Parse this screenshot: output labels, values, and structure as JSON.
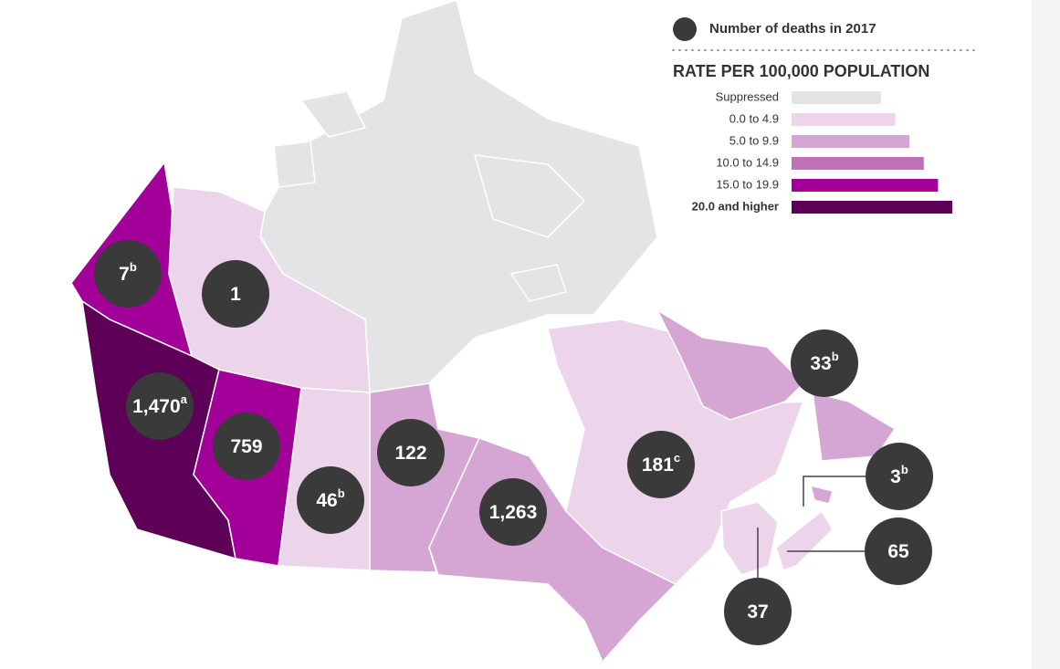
{
  "legend": {
    "marker_label": "Number of deaths in 2017",
    "title": "RATE PER 100,000 POPULATION",
    "bins": [
      {
        "label": "Suppressed",
        "color": "#e4e4e6"
      },
      {
        "label": "0.0 to 4.9",
        "color": "#ecd5ea"
      },
      {
        "label": "5.0 to 9.9",
        "color": "#d5a6d3"
      },
      {
        "label": "10.0 to 14.9",
        "color": "#c070b8"
      },
      {
        "label": "15.0 to 19.9",
        "color": "#a3009a"
      },
      {
        "label": "20.0 and higher",
        "color": "#5e0057"
      }
    ]
  },
  "regions": [
    {
      "deaths": "7",
      "note": "b",
      "color": "#a3009a"
    },
    {
      "deaths": "1",
      "color": "#ecd5ea"
    },
    {
      "deaths": "1,470",
      "note": "a",
      "color": "#5e0057"
    },
    {
      "deaths": "759",
      "color": "#a3009a"
    },
    {
      "deaths": "46",
      "note": "b",
      "color": "#ecd5ea"
    },
    {
      "deaths": "122",
      "color": "#d5a6d3"
    },
    {
      "deaths": "1,263",
      "color": "#d5a6d3"
    },
    {
      "deaths": "181",
      "note": "c",
      "color": "#ecd5ea"
    },
    {
      "deaths": "33",
      "note": "b",
      "color": "#d5a6d3"
    },
    {
      "deaths": "3",
      "note": "b",
      "color": "#d5a6d3"
    },
    {
      "deaths": "65",
      "color": "#ecd5ea"
    },
    {
      "deaths": "37",
      "color": "#ecd5ea"
    }
  ]
}
